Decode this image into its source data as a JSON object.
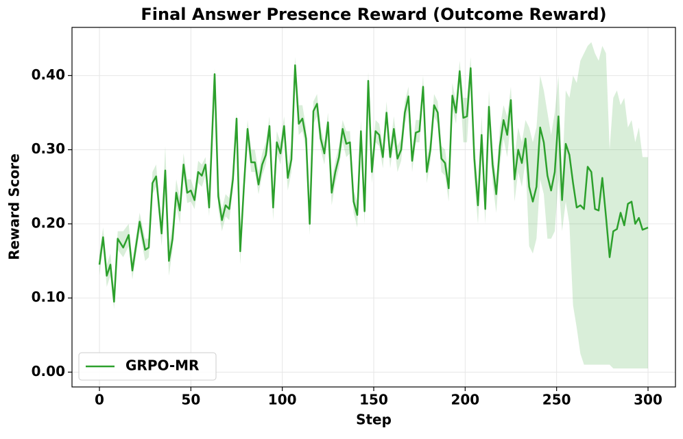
{
  "chart_data": {
    "type": "line",
    "title": "Final Answer Presence Reward (Outcome Reward)",
    "xlabel": "Step",
    "ylabel": "Reward Score",
    "x": [
      0,
      2,
      4,
      6,
      8,
      10,
      13,
      16,
      18,
      22,
      25,
      27,
      29,
      31,
      34,
      36,
      38,
      40,
      42,
      44,
      46,
      48,
      50,
      52,
      54,
      56,
      58,
      60,
      63,
      65,
      67,
      69,
      71,
      73,
      75,
      77,
      79,
      81,
      83,
      85,
      87,
      89,
      91,
      93,
      95,
      97,
      99,
      101,
      103,
      105,
      107,
      109,
      111,
      113,
      115,
      117,
      119,
      121,
      123,
      125,
      127,
      129,
      131,
      133,
      135,
      137,
      139,
      141,
      143,
      145,
      147,
      149,
      151,
      153,
      155,
      157,
      159,
      161,
      163,
      165,
      167,
      169,
      171,
      173,
      175,
      177,
      179,
      181,
      183,
      185,
      187,
      189,
      191,
      193,
      195,
      197,
      199,
      201,
      203,
      205,
      207,
      209,
      211,
      213,
      215,
      217,
      219,
      221,
      223,
      225,
      227,
      229,
      231,
      233,
      235,
      237,
      239,
      241,
      243,
      245,
      247,
      249,
      251,
      253,
      255,
      257,
      259,
      261,
      263,
      265,
      267,
      269,
      271,
      273,
      275,
      277,
      279,
      281,
      283,
      285,
      287,
      289,
      291,
      293,
      295,
      297,
      300
    ],
    "series": [
      {
        "name": "GRPO-MR",
        "color": "#2ca02c",
        "band_color": "#2ca02c",
        "values": [
          0.145,
          0.182,
          0.13,
          0.145,
          0.095,
          0.18,
          0.168,
          0.185,
          0.137,
          0.203,
          0.165,
          0.168,
          0.255,
          0.264,
          0.187,
          0.272,
          0.15,
          0.18,
          0.242,
          0.218,
          0.28,
          0.242,
          0.245,
          0.232,
          0.27,
          0.265,
          0.28,
          0.222,
          0.402,
          0.237,
          0.205,
          0.225,
          0.22,
          0.26,
          0.342,
          0.163,
          0.25,
          0.328,
          0.283,
          0.283,
          0.253,
          0.28,
          0.293,
          0.332,
          0.222,
          0.31,
          0.295,
          0.332,
          0.262,
          0.287,
          0.414,
          0.335,
          0.342,
          0.315,
          0.2,
          0.352,
          0.362,
          0.315,
          0.295,
          0.337,
          0.242,
          0.27,
          0.29,
          0.328,
          0.308,
          0.31,
          0.23,
          0.212,
          0.325,
          0.217,
          0.393,
          0.27,
          0.325,
          0.32,
          0.29,
          0.35,
          0.29,
          0.328,
          0.288,
          0.3,
          0.35,
          0.372,
          0.285,
          0.323,
          0.325,
          0.385,
          0.27,
          0.3,
          0.36,
          0.35,
          0.288,
          0.282,
          0.248,
          0.373,
          0.35,
          0.406,
          0.343,
          0.345,
          0.41,
          0.288,
          0.225,
          0.32,
          0.22,
          0.358,
          0.28,
          0.24,
          0.305,
          0.34,
          0.32,
          0.367,
          0.26,
          0.3,
          0.282,
          0.315,
          0.25,
          0.23,
          0.25,
          0.33,
          0.31,
          0.265,
          0.245,
          0.27,
          0.345,
          0.232,
          0.308,
          0.293,
          0.255,
          0.222,
          0.225,
          0.22,
          0.277,
          0.27,
          0.22,
          0.218,
          0.262,
          0.21,
          0.155,
          0.19,
          0.193,
          0.215,
          0.198,
          0.227,
          0.23,
          0.2,
          0.208,
          0.192,
          0.195
        ],
        "lower": [
          0.13,
          0.17,
          0.115,
          0.13,
          0.085,
          0.165,
          0.155,
          0.17,
          0.125,
          0.19,
          0.15,
          0.155,
          0.24,
          0.25,
          0.17,
          0.24,
          0.13,
          0.165,
          0.225,
          0.2,
          0.265,
          0.228,
          0.23,
          0.22,
          0.255,
          0.25,
          0.265,
          0.21,
          0.385,
          0.22,
          0.19,
          0.21,
          0.205,
          0.245,
          0.32,
          0.145,
          0.235,
          0.31,
          0.27,
          0.27,
          0.24,
          0.265,
          0.28,
          0.315,
          0.205,
          0.295,
          0.28,
          0.315,
          0.245,
          0.27,
          0.39,
          0.32,
          0.325,
          0.3,
          0.185,
          0.335,
          0.345,
          0.3,
          0.28,
          0.32,
          0.225,
          0.255,
          0.275,
          0.31,
          0.29,
          0.295,
          0.215,
          0.195,
          0.31,
          0.2,
          0.375,
          0.255,
          0.31,
          0.305,
          0.275,
          0.335,
          0.275,
          0.31,
          0.27,
          0.285,
          0.335,
          0.355,
          0.27,
          0.31,
          0.31,
          0.37,
          0.255,
          0.285,
          0.345,
          0.335,
          0.27,
          0.265,
          0.23,
          0.355,
          0.335,
          0.39,
          0.31,
          0.31,
          0.39,
          0.26,
          0.2,
          0.295,
          0.2,
          0.335,
          0.255,
          0.215,
          0.28,
          0.315,
          0.29,
          0.34,
          0.23,
          0.27,
          0.25,
          0.285,
          0.17,
          0.16,
          0.18,
          0.26,
          0.24,
          0.18,
          0.18,
          0.19,
          0.26,
          0.19,
          0.23,
          0.2,
          0.09,
          0.06,
          0.025,
          0.01,
          0.01,
          0.01,
          0.01,
          0.01,
          0.01,
          0.01,
          0.01,
          0.005,
          0.005,
          0.005,
          0.005,
          0.005,
          0.005,
          0.005,
          0.005,
          0.005,
          0.005
        ],
        "upper": [
          0.16,
          0.195,
          0.145,
          0.16,
          0.11,
          0.19,
          0.19,
          0.2,
          0.15,
          0.215,
          0.18,
          0.18,
          0.27,
          0.28,
          0.2,
          0.305,
          0.17,
          0.2,
          0.26,
          0.235,
          0.295,
          0.26,
          0.26,
          0.245,
          0.285,
          0.28,
          0.29,
          0.235,
          0.41,
          0.25,
          0.22,
          0.24,
          0.235,
          0.275,
          0.35,
          0.18,
          0.265,
          0.34,
          0.3,
          0.3,
          0.27,
          0.295,
          0.31,
          0.345,
          0.24,
          0.325,
          0.31,
          0.345,
          0.28,
          0.305,
          0.425,
          0.36,
          0.36,
          0.33,
          0.215,
          0.365,
          0.375,
          0.33,
          0.31,
          0.35,
          0.26,
          0.285,
          0.305,
          0.34,
          0.325,
          0.325,
          0.245,
          0.23,
          0.34,
          0.235,
          0.405,
          0.285,
          0.34,
          0.335,
          0.305,
          0.365,
          0.305,
          0.345,
          0.305,
          0.315,
          0.365,
          0.385,
          0.3,
          0.34,
          0.34,
          0.4,
          0.285,
          0.315,
          0.375,
          0.365,
          0.305,
          0.3,
          0.265,
          0.39,
          0.365,
          0.42,
          0.37,
          0.37,
          0.425,
          0.31,
          0.25,
          0.345,
          0.245,
          0.38,
          0.3,
          0.26,
          0.33,
          0.36,
          0.345,
          0.385,
          0.29,
          0.33,
          0.31,
          0.34,
          0.33,
          0.31,
          0.33,
          0.4,
          0.38,
          0.35,
          0.32,
          0.35,
          0.4,
          0.26,
          0.38,
          0.37,
          0.4,
          0.39,
          0.42,
          0.43,
          0.44,
          0.445,
          0.43,
          0.42,
          0.44,
          0.43,
          0.3,
          0.37,
          0.38,
          0.36,
          0.37,
          0.33,
          0.34,
          0.31,
          0.33,
          0.29,
          0.29
        ]
      }
    ],
    "xlim": [
      -15,
      315
    ],
    "xticks": [
      0,
      50,
      100,
      150,
      200,
      250,
      300
    ],
    "ylim": [
      -0.02,
      0.465
    ],
    "yticks": [
      {
        "value": 0,
        "label": "0.00"
      },
      {
        "value": 0.1,
        "label": "0.10"
      },
      {
        "value": 0.2,
        "label": "0.20"
      },
      {
        "value": 0.3,
        "label": "0.30"
      },
      {
        "value": 0.4,
        "label": "0.40"
      }
    ],
    "grid": true,
    "legend": "lower left"
  }
}
